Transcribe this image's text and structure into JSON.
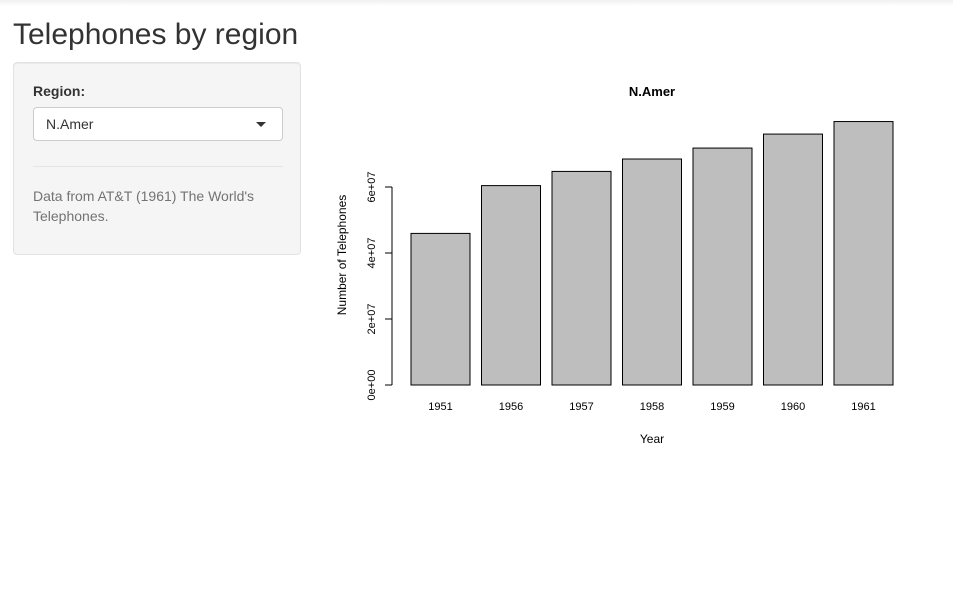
{
  "page": {
    "title": "Telephones by region"
  },
  "sidebar": {
    "region_label": "Region:",
    "region_selected": "N.Amer",
    "help_text": "Data from AT&T (1961) The World's Telephones."
  },
  "chart_data": {
    "type": "bar",
    "title": "N.Amer",
    "xlabel": "Year",
    "ylabel": "Number of Telephones",
    "categories": [
      "1951",
      "1956",
      "1957",
      "1958",
      "1959",
      "1960",
      "1961"
    ],
    "values": [
      45939000,
      60423000,
      64721000,
      68484000,
      71799000,
      76036000,
      79831000
    ],
    "ylim": [
      0,
      80000000
    ],
    "yticks": [
      0,
      20000000,
      40000000,
      60000000
    ],
    "ytick_labels": [
      "0e+00",
      "2e+07",
      "4e+07",
      "6e+07"
    ],
    "bar_color": "#bebebe",
    "bar_edge_color": "#000000",
    "grid": false,
    "legend": "none"
  }
}
